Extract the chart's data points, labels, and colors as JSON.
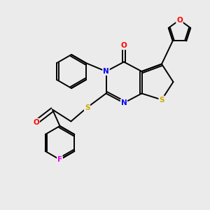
{
  "background_color": "#ebebeb",
  "atom_colors": {
    "C": "#000000",
    "N": "#0000ff",
    "O": "#ff0000",
    "S": "#ccaa00",
    "F": "#ee00ee"
  },
  "bond_color": "#000000",
  "bond_lw": 1.4,
  "figsize": [
    3.0,
    3.0
  ],
  "dpi": 100
}
